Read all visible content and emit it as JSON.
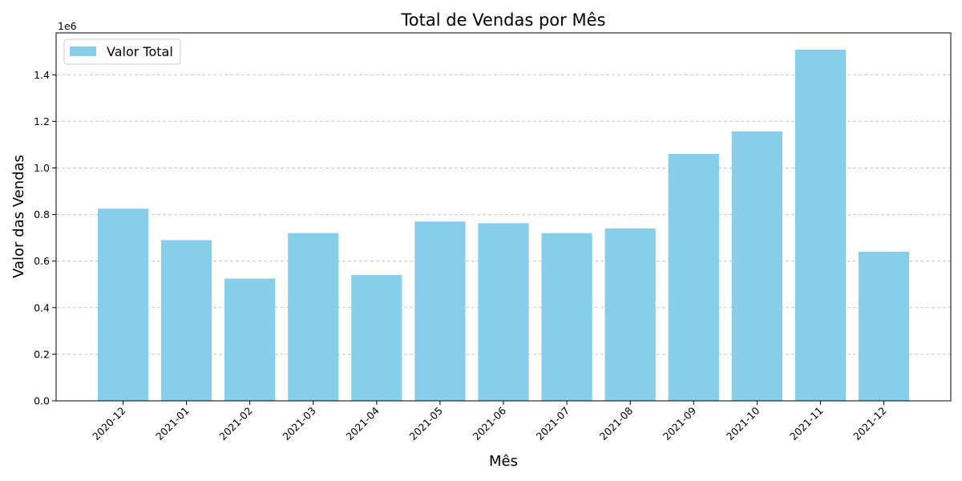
{
  "chart_data": {
    "type": "bar",
    "title": "Total de Vendas por Mês",
    "xlabel": "Mês",
    "ylabel": "Valor das Vendas",
    "y_offset_label": "1e6",
    "categories": [
      "2020-12",
      "2021-01",
      "2021-02",
      "2021-03",
      "2021-04",
      "2021-05",
      "2021-06",
      "2021-07",
      "2021-08",
      "2021-09",
      "2021-10",
      "2021-11",
      "2021-12"
    ],
    "y_tick_labels": [
      "0.0",
      "0.2",
      "0.4",
      "0.6",
      "0.8",
      "1.0",
      "1.2",
      "1.4"
    ],
    "ylim": [
      0,
      1580000
    ],
    "grid": "y-dashed",
    "legend_position": "upper-left",
    "series": [
      {
        "name": "Valor Total",
        "color": "#87CEEB",
        "values": [
          825000,
          690000,
          525000,
          720000,
          540000,
          770000,
          763000,
          720000,
          740000,
          1060000,
          1157000,
          1508000,
          640000
        ]
      }
    ]
  }
}
